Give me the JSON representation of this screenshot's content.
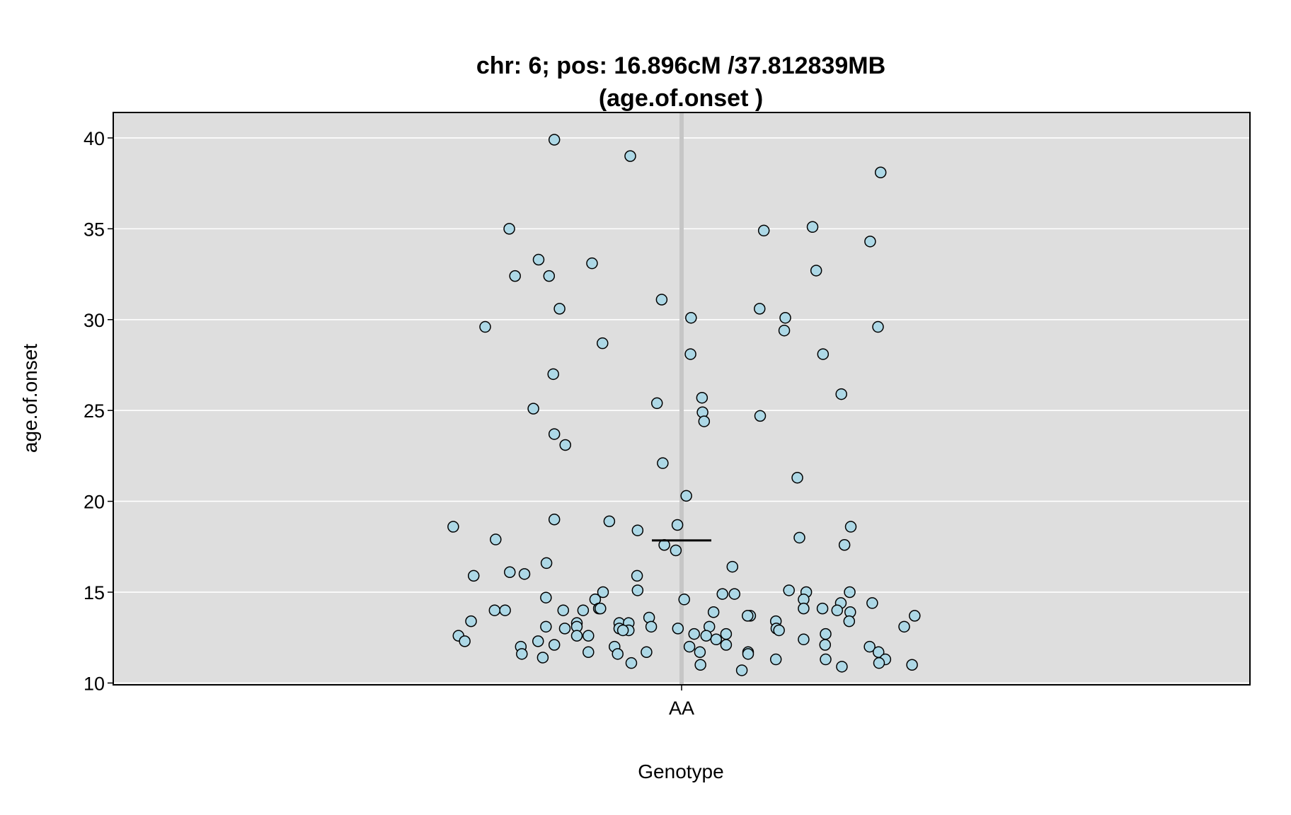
{
  "chart_data": {
    "type": "scatter",
    "title_line1": "chr: 6; pos: 16.896cM /37.812839MB",
    "title_line2": "(age.of.onset )",
    "xlabel": "Genotype",
    "ylabel": "age.of.onset",
    "categories": [
      "AA"
    ],
    "ylim": [
      9.9,
      41.4
    ],
    "yticks": [
      10,
      15,
      20,
      25,
      30,
      35,
      40
    ],
    "grid": true,
    "mean": 17.85,
    "colors": {
      "panel": "#dedede",
      "point_fill": "#add8e6",
      "point_stroke": "#000000",
      "grid": "#ffffff",
      "center_line": "#c6c6c6"
    },
    "points": [
      {
        "jitter": -0.243,
        "y": 39.9
      },
      {
        "jitter": -0.098,
        "y": 39.0
      },
      {
        "jitter": 0.38,
        "y": 38.1
      },
      {
        "jitter": -0.329,
        "y": 35.0
      },
      {
        "jitter": 0.157,
        "y": 34.9
      },
      {
        "jitter": 0.25,
        "y": 35.1
      },
      {
        "jitter": 0.36,
        "y": 34.3
      },
      {
        "jitter": -0.273,
        "y": 33.3
      },
      {
        "jitter": -0.171,
        "y": 33.1
      },
      {
        "jitter": -0.318,
        "y": 32.4
      },
      {
        "jitter": -0.253,
        "y": 32.4
      },
      {
        "jitter": 0.257,
        "y": 32.7
      },
      {
        "jitter": -0.038,
        "y": 31.1
      },
      {
        "jitter": -0.233,
        "y": 30.6
      },
      {
        "jitter": 0.149,
        "y": 30.6
      },
      {
        "jitter": 0.018,
        "y": 30.1
      },
      {
        "jitter": 0.198,
        "y": 30.1
      },
      {
        "jitter": -0.375,
        "y": 29.6
      },
      {
        "jitter": 0.196,
        "y": 29.4
      },
      {
        "jitter": 0.375,
        "y": 29.6
      },
      {
        "jitter": -0.151,
        "y": 28.7
      },
      {
        "jitter": 0.017,
        "y": 28.1
      },
      {
        "jitter": 0.27,
        "y": 28.1
      },
      {
        "jitter": -0.245,
        "y": 27.0
      },
      {
        "jitter": 0.305,
        "y": 25.9
      },
      {
        "jitter": 0.039,
        "y": 25.7
      },
      {
        "jitter": -0.047,
        "y": 25.4
      },
      {
        "jitter": -0.283,
        "y": 25.1
      },
      {
        "jitter": 0.04,
        "y": 24.9
      },
      {
        "jitter": 0.15,
        "y": 24.7
      },
      {
        "jitter": 0.043,
        "y": 24.4
      },
      {
        "jitter": -0.243,
        "y": 23.7
      },
      {
        "jitter": -0.222,
        "y": 23.1
      },
      {
        "jitter": -0.036,
        "y": 22.1
      },
      {
        "jitter": 0.221,
        "y": 21.3
      },
      {
        "jitter": 0.009,
        "y": 20.3
      },
      {
        "jitter": -0.243,
        "y": 19.0
      },
      {
        "jitter": -0.138,
        "y": 18.9
      },
      {
        "jitter": -0.436,
        "y": 18.6
      },
      {
        "jitter": -0.008,
        "y": 18.7
      },
      {
        "jitter": 0.323,
        "y": 18.6
      },
      {
        "jitter": -0.084,
        "y": 18.4
      },
      {
        "jitter": 0.225,
        "y": 18.0
      },
      {
        "jitter": -0.355,
        "y": 17.9
      },
      {
        "jitter": -0.033,
        "y": 17.6
      },
      {
        "jitter": -0.011,
        "y": 17.3
      },
      {
        "jitter": 0.311,
        "y": 17.6
      },
      {
        "jitter": -0.258,
        "y": 16.6
      },
      {
        "jitter": 0.097,
        "y": 16.4
      },
      {
        "jitter": -0.328,
        "y": 16.1
      },
      {
        "jitter": -0.3,
        "y": 16.0
      },
      {
        "jitter": -0.397,
        "y": 15.9
      },
      {
        "jitter": -0.085,
        "y": 15.9
      },
      {
        "jitter": -0.084,
        "y": 15.1
      },
      {
        "jitter": 0.205,
        "y": 15.1
      },
      {
        "jitter": -0.15,
        "y": 15.0
      },
      {
        "jitter": 0.078,
        "y": 14.9
      },
      {
        "jitter": 0.101,
        "y": 14.9
      },
      {
        "jitter": 0.238,
        "y": 15.0
      },
      {
        "jitter": 0.321,
        "y": 15.0
      },
      {
        "jitter": -0.259,
        "y": 14.7
      },
      {
        "jitter": -0.165,
        "y": 14.6
      },
      {
        "jitter": 0.005,
        "y": 14.6
      },
      {
        "jitter": 0.233,
        "y": 14.6
      },
      {
        "jitter": 0.364,
        "y": 14.4
      },
      {
        "jitter": 0.304,
        "y": 14.4
      },
      {
        "jitter": -0.357,
        "y": 14.0
      },
      {
        "jitter": -0.337,
        "y": 14.0
      },
      {
        "jitter": -0.226,
        "y": 14.0
      },
      {
        "jitter": -0.188,
        "y": 14.0
      },
      {
        "jitter": -0.158,
        "y": 14.1
      },
      {
        "jitter": -0.155,
        "y": 14.1
      },
      {
        "jitter": 0.233,
        "y": 14.1
      },
      {
        "jitter": 0.269,
        "y": 14.1
      },
      {
        "jitter": 0.297,
        "y": 14.0
      },
      {
        "jitter": 0.322,
        "y": 13.9
      },
      {
        "jitter": 0.061,
        "y": 13.9
      },
      {
        "jitter": 0.445,
        "y": 13.7
      },
      {
        "jitter": -0.402,
        "y": 13.4
      },
      {
        "jitter": -0.062,
        "y": 13.6
      },
      {
        "jitter": 0.131,
        "y": 13.7
      },
      {
        "jitter": 0.126,
        "y": 13.7
      },
      {
        "jitter": 0.18,
        "y": 13.4
      },
      {
        "jitter": 0.32,
        "y": 13.4
      },
      {
        "jitter": -0.2,
        "y": 13.3
      },
      {
        "jitter": -0.119,
        "y": 13.3
      },
      {
        "jitter": -0.101,
        "y": 13.3
      },
      {
        "jitter": -0.2,
        "y": 13.1
      },
      {
        "jitter": -0.259,
        "y": 13.1
      },
      {
        "jitter": -0.058,
        "y": 13.1
      },
      {
        "jitter": 0.053,
        "y": 13.1
      },
      {
        "jitter": 0.425,
        "y": 13.1
      },
      {
        "jitter": -0.223,
        "y": 13.0
      },
      {
        "jitter": -0.119,
        "y": 13.0
      },
      {
        "jitter": -0.007,
        "y": 13.0
      },
      {
        "jitter": 0.181,
        "y": 13.0
      },
      {
        "jitter": 0.186,
        "y": 12.9
      },
      {
        "jitter": -0.101,
        "y": 12.9
      },
      {
        "jitter": -0.112,
        "y": 12.9
      },
      {
        "jitter": -0.426,
        "y": 12.6
      },
      {
        "jitter": -0.2,
        "y": 12.6
      },
      {
        "jitter": -0.178,
        "y": 12.6
      },
      {
        "jitter": 0.024,
        "y": 12.7
      },
      {
        "jitter": 0.047,
        "y": 12.6
      },
      {
        "jitter": 0.085,
        "y": 12.7
      },
      {
        "jitter": 0.275,
        "y": 12.7
      },
      {
        "jitter": -0.414,
        "y": 12.3
      },
      {
        "jitter": -0.274,
        "y": 12.3
      },
      {
        "jitter": 0.066,
        "y": 12.4
      },
      {
        "jitter": 0.233,
        "y": 12.4
      },
      {
        "jitter": -0.307,
        "y": 12.0
      },
      {
        "jitter": -0.243,
        "y": 12.1
      },
      {
        "jitter": -0.128,
        "y": 12.0
      },
      {
        "jitter": 0.015,
        "y": 12.0
      },
      {
        "jitter": 0.085,
        "y": 12.1
      },
      {
        "jitter": 0.274,
        "y": 12.1
      },
      {
        "jitter": 0.359,
        "y": 12.0
      },
      {
        "jitter": -0.305,
        "y": 11.6
      },
      {
        "jitter": -0.265,
        "y": 11.4
      },
      {
        "jitter": -0.178,
        "y": 11.7
      },
      {
        "jitter": -0.122,
        "y": 11.6
      },
      {
        "jitter": -0.067,
        "y": 11.7
      },
      {
        "jitter": 0.035,
        "y": 11.7
      },
      {
        "jitter": 0.127,
        "y": 11.7
      },
      {
        "jitter": 0.127,
        "y": 11.6
      },
      {
        "jitter": 0.376,
        "y": 11.7
      },
      {
        "jitter": 0.18,
        "y": 11.3
      },
      {
        "jitter": 0.275,
        "y": 11.3
      },
      {
        "jitter": 0.389,
        "y": 11.3
      },
      {
        "jitter": -0.096,
        "y": 11.1
      },
      {
        "jitter": 0.036,
        "y": 11.0
      },
      {
        "jitter": 0.377,
        "y": 11.1
      },
      {
        "jitter": 0.306,
        "y": 10.9
      },
      {
        "jitter": 0.44,
        "y": 11.0
      },
      {
        "jitter": 0.115,
        "y": 10.7
      }
    ]
  }
}
